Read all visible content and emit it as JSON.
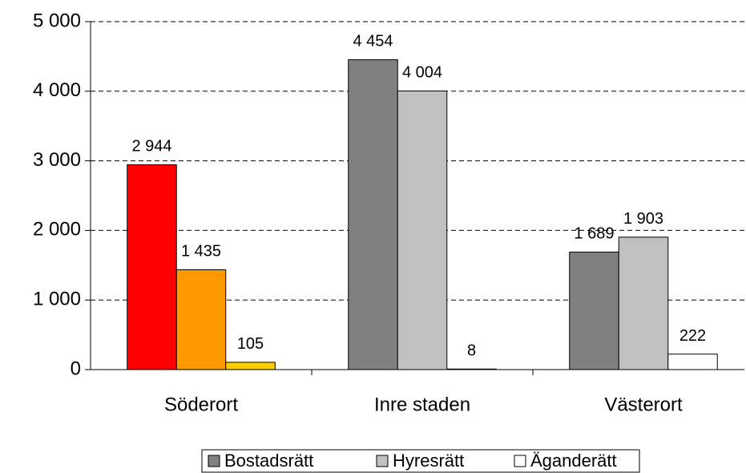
{
  "chart_data": {
    "type": "bar",
    "categories": [
      "Söderort",
      "Inre staden",
      "Västerort"
    ],
    "series": [
      {
        "name": "Bostadsrätt",
        "color": "#808080",
        "colors": [
          "#ff0000",
          "#808080",
          "#808080"
        ],
        "values": [
          2944,
          4454,
          1689
        ],
        "value_labels": [
          "2 944",
          "4 454",
          "1 689"
        ]
      },
      {
        "name": "Hyresrätt",
        "color": "#c0c0c0",
        "colors": [
          "#ff9900",
          "#c0c0c0",
          "#c0c0c0"
        ],
        "values": [
          1435,
          4004,
          1903
        ],
        "value_labels": [
          "1 435",
          "4 004",
          "1 903"
        ]
      },
      {
        "name": "Äganderätt",
        "color": "#ffffff",
        "colors": [
          "#ffcc00",
          "#ffffff",
          "#ffffff"
        ],
        "values": [
          105,
          8,
          222
        ]
      }
    ],
    "ylim": [
      0,
      5000
    ],
    "yticks": [
      0,
      {
        "value": 1000,
        "label": "1 000"
      },
      {
        "value": 2000,
        "label": "2 000"
      },
      {
        "value": 3000,
        "label": "3 000"
      },
      {
        "value": 4000,
        "label": "4 000"
      },
      {
        "value": 5000,
        "label": "5 000"
      }
    ],
    "grid": true,
    "legend": "bottom"
  }
}
